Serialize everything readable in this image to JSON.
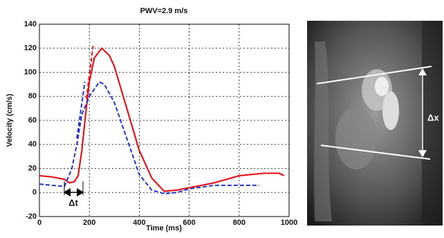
{
  "chart_data": {
    "type": "line",
    "title": "PWV=2.9 m/s",
    "x_label": "Time (ms)",
    "y_label": "Velocity (cm/s)",
    "xlim": [
      0,
      1000
    ],
    "xticks": [
      0,
      200,
      400,
      600,
      800,
      1000
    ],
    "ylim": [
      -20,
      140
    ],
    "yticks": [
      -20,
      0,
      20,
      40,
      60,
      80,
      100,
      120,
      140
    ],
    "grid": true,
    "series": [
      {
        "color": "#e8141c",
        "dash": false,
        "x": [
          0,
          50,
          100,
          120,
          140,
          155,
          170,
          185,
          200,
          220,
          250,
          280,
          300,
          350,
          400,
          450,
          500,
          550,
          600,
          700,
          800,
          900,
          960,
          980
        ],
        "values": [
          14,
          13,
          11,
          8,
          9,
          14,
          35,
          65,
          92,
          112,
          120,
          114,
          105,
          70,
          35,
          12,
          1,
          2,
          4,
          8,
          14,
          16,
          16,
          14
        ]
      },
      {
        "color": "#2233cc",
        "dash": true,
        "x": [
          0,
          50,
          100,
          110,
          130,
          150,
          170,
          200,
          240,
          260,
          300,
          350,
          400,
          450,
          500,
          550,
          600,
          700,
          800,
          880
        ],
        "values": [
          7,
          6,
          5,
          10,
          20,
          40,
          65,
          80,
          92,
          90,
          75,
          45,
          15,
          2,
          -1,
          0,
          3,
          6,
          6,
          6
        ]
      },
      {
        "color": "#e8141c",
        "dash": true,
        "x": [
          188,
          215
        ],
        "values": [
          78,
          122
        ]
      },
      {
        "color": "#2233cc",
        "dash": true,
        "x": [
          150,
          182
        ],
        "values": [
          45,
          92
        ]
      }
    ],
    "annotation": "Δt"
  },
  "image": {
    "label": "Δx"
  }
}
